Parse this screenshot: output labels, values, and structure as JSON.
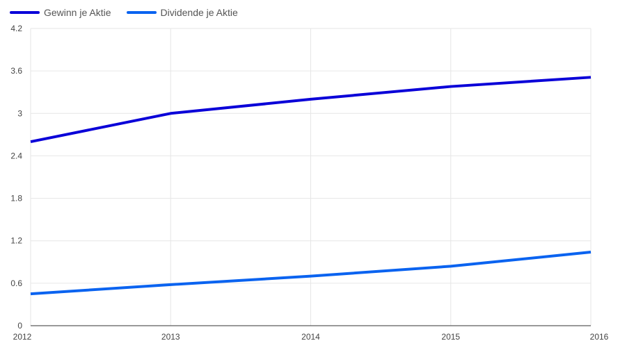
{
  "chart_data": {
    "type": "line",
    "x": [
      "2012",
      "2013",
      "2014",
      "2015",
      "2016"
    ],
    "series": [
      {
        "name": "Gewinn je Aktie",
        "color": "#0a00d8",
        "values": [
          2.6,
          3.0,
          3.2,
          3.38,
          3.51
        ]
      },
      {
        "name": "Dividende je Aktie",
        "color": "#0a63f0",
        "values": [
          0.45,
          0.58,
          0.7,
          0.84,
          1.04
        ]
      }
    ],
    "yticks": [
      "0",
      "0.6",
      "1.2",
      "1.8",
      "2.4",
      "3",
      "3.6",
      "4.2"
    ],
    "ylim": [
      0,
      4.2
    ],
    "grid": true,
    "legend_position": "top-left"
  }
}
